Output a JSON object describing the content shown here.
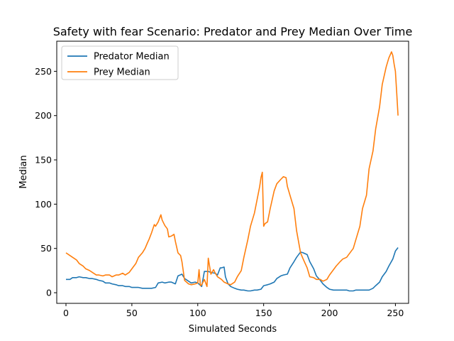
{
  "chart_data": {
    "type": "line",
    "title": "Safety with fear Scenario: Predator and Prey Median Over Time",
    "xlabel": "Simulated Seconds",
    "ylabel": "Median",
    "xlim": [
      -7,
      260
    ],
    "ylim": [
      -12,
      284
    ],
    "xticks": [
      0,
      50,
      100,
      150,
      200,
      250
    ],
    "yticks": [
      0,
      50,
      100,
      150,
      200,
      250
    ],
    "grid": false,
    "legend_position": "upper-left",
    "series": [
      {
        "name": "Predator Median",
        "color": "#1f77b4",
        "x": [
          0,
          3,
          5,
          8,
          10,
          13,
          15,
          18,
          20,
          23,
          25,
          28,
          30,
          33,
          35,
          38,
          40,
          43,
          45,
          48,
          50,
          53,
          55,
          58,
          60,
          63,
          65,
          68,
          70,
          73,
          75,
          78,
          80,
          83,
          85,
          88,
          90,
          93,
          95,
          98,
          100,
          103,
          105,
          108,
          110,
          113,
          115,
          117,
          118,
          120,
          121,
          123,
          125,
          128,
          130,
          133,
          135,
          138,
          140,
          143,
          145,
          148,
          150,
          153,
          155,
          158,
          160,
          163,
          165,
          168,
          170,
          173,
          175,
          178,
          180,
          183,
          185,
          188,
          190,
          193,
          195,
          198,
          200,
          203,
          205,
          208,
          210,
          213,
          215,
          218,
          220,
          223,
          225,
          228,
          230,
          233,
          235,
          238,
          240,
          243,
          245,
          248,
          250,
          252
        ],
        "values": [
          15,
          15,
          17,
          17,
          18,
          17,
          17,
          16,
          16,
          15,
          14,
          13,
          11,
          11,
          10,
          9,
          8,
          8,
          7,
          7,
          6,
          6,
          6,
          5,
          5,
          5,
          5,
          6,
          11,
          12,
          11,
          12,
          12,
          10,
          19,
          21,
          16,
          13,
          11,
          12,
          11,
          7,
          24,
          24,
          23,
          22,
          20,
          28,
          28,
          29,
          18,
          10,
          7,
          5,
          4,
          3,
          3,
          2,
          2,
          3,
          3,
          4,
          8,
          9,
          10,
          12,
          16,
          19,
          20,
          21,
          28,
          35,
          40,
          46,
          45,
          43,
          35,
          27,
          19,
          14,
          10,
          6,
          4,
          3,
          3,
          3,
          3,
          3,
          2,
          2,
          3,
          3,
          3,
          3,
          3,
          5,
          8,
          12,
          18,
          24,
          30,
          38,
          47,
          51
        ]
      },
      {
        "name": "Prey Median",
        "color": "#ff7f0e",
        "x": [
          0,
          3,
          5,
          8,
          10,
          13,
          15,
          18,
          20,
          23,
          25,
          28,
          30,
          33,
          35,
          38,
          40,
          43,
          45,
          48,
          50,
          53,
          55,
          58,
          60,
          62,
          63,
          65,
          67,
          68,
          70,
          72,
          73,
          75,
          77,
          78,
          80,
          82,
          83,
          85,
          87,
          88,
          90,
          93,
          95,
          98,
          100,
          101,
          102,
          103,
          105,
          107,
          108,
          110,
          112,
          113,
          115,
          118,
          120,
          123,
          125,
          128,
          130,
          133,
          135,
          138,
          140,
          143,
          145,
          147,
          148,
          149,
          150,
          151,
          153,
          155,
          158,
          160,
          163,
          165,
          167,
          168,
          170,
          173,
          175,
          178,
          180,
          183,
          185,
          188,
          190,
          193,
          195,
          198,
          200,
          203,
          205,
          208,
          210,
          213,
          215,
          218,
          220,
          223,
          225,
          228,
          230,
          233,
          235,
          238,
          240,
          243,
          245,
          247,
          248,
          249,
          250,
          251,
          252
        ],
        "values": [
          45,
          42,
          40,
          37,
          33,
          30,
          27,
          25,
          23,
          20,
          20,
          19,
          20,
          20,
          18,
          20,
          20,
          22,
          20,
          23,
          27,
          33,
          40,
          45,
          50,
          57,
          60,
          68,
          77,
          75,
          80,
          88,
          82,
          76,
          72,
          63,
          64,
          66,
          58,
          45,
          42,
          35,
          14,
          10,
          9,
          10,
          11,
          26,
          8,
          9,
          15,
          7,
          39,
          21,
          26,
          23,
          18,
          15,
          12,
          10,
          9,
          12,
          18,
          25,
          40,
          60,
          75,
          90,
          105,
          120,
          130,
          136,
          75,
          78,
          80,
          95,
          115,
          123,
          128,
          131,
          130,
          120,
          110,
          95,
          70,
          45,
          38,
          28,
          18,
          17,
          15,
          15,
          13,
          15,
          20,
          26,
          30,
          35,
          38,
          40,
          44,
          50,
          60,
          75,
          95,
          110,
          140,
          160,
          185,
          210,
          235,
          255,
          265,
          272,
          268,
          258,
          250,
          225,
          200
        ]
      }
    ]
  }
}
